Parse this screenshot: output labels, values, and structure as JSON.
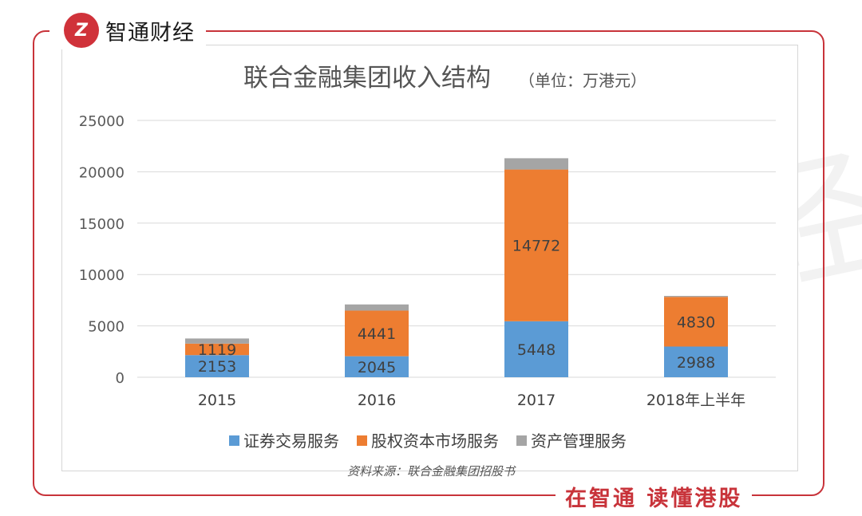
{
  "brand": {
    "name": "智通财经",
    "logo_text": "Z",
    "slogan": "在智通 读懂港股"
  },
  "source_note": "资料来源：联合金融集团招股书",
  "colors": {
    "frame": "#c8333a",
    "securities": "#5b9bd5",
    "equity_capital": "#ed7d31",
    "asset_mgmt": "#a5a5a5"
  },
  "chart_data": {
    "type": "bar",
    "stacked": true,
    "title": "联合金融集团收入结构",
    "title_unit": "（单位：万港元）",
    "categories": [
      "2015",
      "2016",
      "2017",
      "2018年上半年"
    ],
    "series": [
      {
        "name": "证券交易服务",
        "color": "#5b9bd5",
        "values": [
          2153,
          2045,
          5448,
          2988
        ],
        "labels": [
          "2153",
          "2045",
          "5448",
          "2988"
        ]
      },
      {
        "name": "股权资本市场服务",
        "color": "#ed7d31",
        "values": [
          1119,
          4441,
          14772,
          4830
        ],
        "labels": [
          "1119",
          "4441",
          "14772",
          "4830"
        ]
      },
      {
        "name": "资产管理服务",
        "color": "#a5a5a5",
        "values": [
          500,
          600,
          1100,
          100
        ],
        "labels": [
          "",
          "",
          "",
          ""
        ]
      }
    ],
    "yticks": [
      "0",
      "5000",
      "10000",
      "15000",
      "20000",
      "25000"
    ],
    "ylim": [
      0,
      25000
    ],
    "grid": true,
    "legend_position": "bottom"
  }
}
